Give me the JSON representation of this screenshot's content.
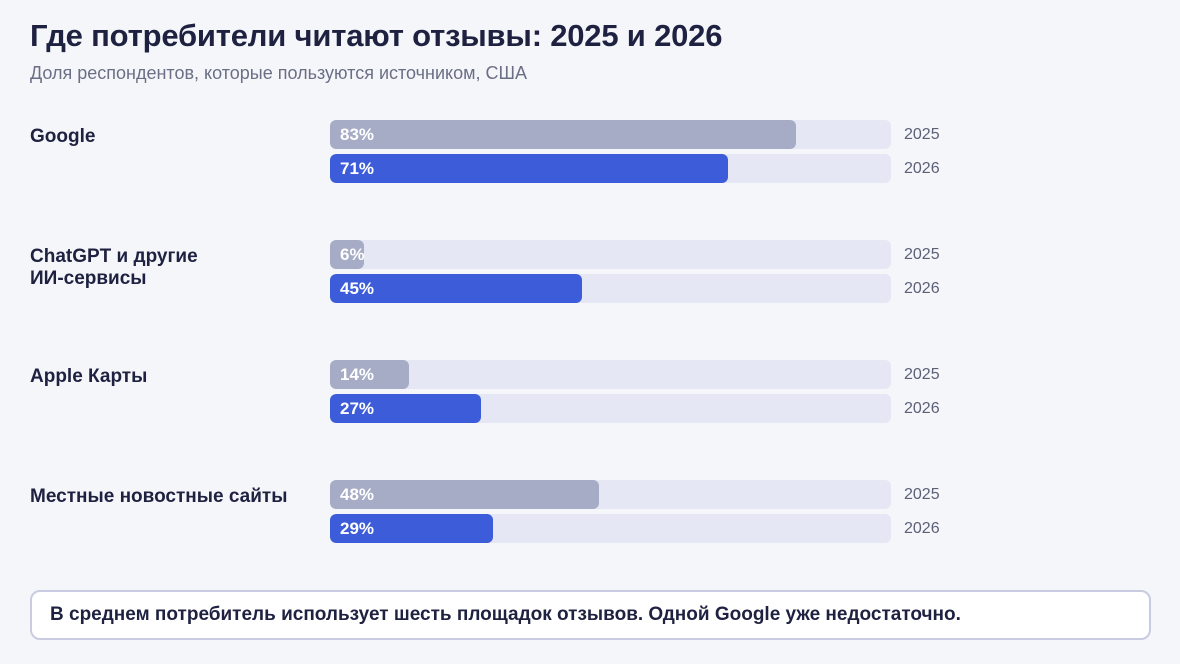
{
  "chart_data": {
    "type": "bar",
    "orientation": "horizontal",
    "title": "Где потребители читают отзывы: 2025 и 2026",
    "subtitle": "Доля респондентов, которые пользуются источником, США",
    "xlim": [
      0,
      100
    ],
    "value_format": "percent",
    "grid": false,
    "legend": "none; year label right of each bar",
    "categories": [
      "Google",
      "ChatGPT и другие\nИИ-сервисы",
      "Apple Карты",
      "Местные новостные сайты"
    ],
    "series": [
      {
        "name": "2025",
        "color": "#a6abc6",
        "values": [
          83,
          6,
          14,
          48
        ],
        "labels": [
          "83%",
          "6%",
          "14%",
          "48%"
        ]
      },
      {
        "name": "2026",
        "color": "#3c5cd9",
        "values": [
          71,
          45,
          27,
          29
        ],
        "labels": [
          "71%",
          "45%",
          "27%",
          "29%"
        ]
      }
    ],
    "note": "В среднем потребитель использует шесть площадок отзывов. Одной Google уже недостаточно."
  }
}
